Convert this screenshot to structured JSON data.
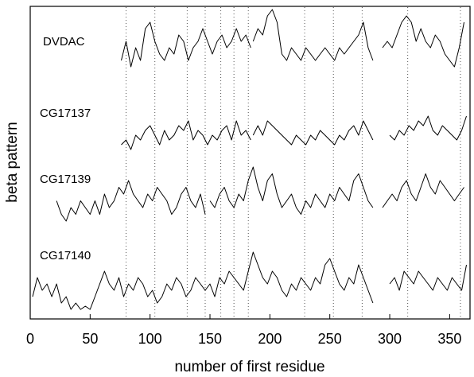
{
  "chart_data": {
    "type": "line",
    "xlabel": "number of first residue",
    "ylabel": "beta pattern",
    "xlim": [
      0,
      367
    ],
    "xticks": [
      0,
      50,
      100,
      150,
      200,
      250,
      300,
      350
    ],
    "y_tick_labels_shown": false,
    "grid": "dotted vertical reference lines",
    "reference_lines_x": [
      80,
      104,
      131,
      146,
      159,
      170,
      182,
      229,
      253,
      277,
      315,
      359
    ],
    "legend": "none; series labelled inline on the left",
    "series": [
      {
        "name": "DVDAC",
        "segments": [
          {
            "x": [
              76,
              80,
              84,
              88,
              92,
              96,
              100,
              104,
              108,
              112,
              116,
              120,
              124,
              128,
              132,
              136,
              140,
              144,
              148,
              152,
              156,
              160,
              164,
              168,
              172,
              176,
              180,
              184
            ],
            "y": [
              0.3,
              0.6,
              0.2,
              0.5,
              0.3,
              0.8,
              0.9,
              0.6,
              0.4,
              0.3,
              0.5,
              0.4,
              0.7,
              0.6,
              0.3,
              0.5,
              0.6,
              0.8,
              0.6,
              0.4,
              0.6,
              0.7,
              0.5,
              0.6,
              0.8,
              0.6,
              0.7,
              0.5
            ]
          },
          {
            "x": [
              186,
              190,
              194,
              198,
              202,
              206,
              210,
              214,
              218,
              222,
              226,
              230,
              234,
              238,
              242,
              246,
              250,
              254,
              258,
              262,
              266,
              270,
              274,
              278,
              282,
              286
            ],
            "y": [
              0.6,
              0.8,
              0.7,
              1.0,
              1.1,
              0.9,
              0.4,
              0.3,
              0.5,
              0.4,
              0.3,
              0.5,
              0.4,
              0.3,
              0.4,
              0.5,
              0.4,
              0.3,
              0.5,
              0.4,
              0.5,
              0.6,
              0.7,
              0.9,
              0.5,
              0.3
            ]
          },
          {
            "x": [
              294,
              298,
              302,
              306,
              310,
              314,
              318,
              322,
              326,
              330,
              334,
              338,
              342,
              346,
              350,
              354,
              358,
              362
            ],
            "y": [
              0.5,
              0.6,
              0.5,
              0.7,
              0.9,
              1.0,
              0.9,
              0.6,
              0.8,
              0.6,
              0.5,
              0.7,
              0.6,
              0.4,
              0.3,
              0.2,
              0.5,
              0.9
            ]
          }
        ]
      },
      {
        "name": "CG17137",
        "segments": [
          {
            "x": [
              76,
              80,
              84,
              88,
              92,
              96,
              100,
              104,
              108,
              112,
              116,
              120,
              124,
              128,
              132,
              136,
              140,
              144,
              148,
              152,
              156,
              160,
              164,
              168,
              172,
              176,
              180,
              184
            ],
            "y": [
              0.3,
              0.4,
              0.2,
              0.5,
              0.4,
              0.6,
              0.7,
              0.5,
              0.3,
              0.6,
              0.4,
              0.5,
              0.7,
              0.6,
              0.8,
              0.4,
              0.6,
              0.5,
              0.3,
              0.5,
              0.4,
              0.6,
              0.7,
              0.4,
              0.8,
              0.5,
              0.6,
              0.4
            ]
          },
          {
            "x": [
              186,
              190,
              194,
              198,
              202,
              206,
              210,
              214,
              218,
              222,
              226,
              230,
              234,
              238,
              242,
              246,
              250,
              254,
              258,
              262,
              266,
              270,
              274,
              278,
              282,
              286
            ],
            "y": [
              0.5,
              0.7,
              0.5,
              0.8,
              0.7,
              0.6,
              0.5,
              0.4,
              0.3,
              0.5,
              0.4,
              0.3,
              0.5,
              0.4,
              0.6,
              0.5,
              0.4,
              0.3,
              0.5,
              0.4,
              0.6,
              0.7,
              0.5,
              0.8,
              0.6,
              0.4
            ]
          },
          {
            "x": [
              300,
              304,
              308,
              312,
              316,
              320,
              324,
              328,
              332,
              336,
              340,
              344,
              348,
              352,
              356,
              360,
              364
            ],
            "y": [
              0.5,
              0.4,
              0.6,
              0.5,
              0.7,
              0.6,
              0.8,
              0.7,
              0.9,
              0.6,
              0.5,
              0.7,
              0.6,
              0.5,
              0.4,
              0.6,
              0.9
            ]
          }
        ]
      },
      {
        "name": "CG17139",
        "segments": [
          {
            "x": [
              22,
              26,
              30,
              34,
              38,
              42,
              46,
              50,
              54,
              58,
              62,
              66,
              70,
              74,
              78,
              82,
              86,
              90,
              94,
              98,
              102,
              106,
              110,
              114,
              118,
              122,
              126,
              130,
              134,
              138,
              142,
              146
            ],
            "y": [
              0.5,
              0.3,
              0.2,
              0.4,
              0.3,
              0.5,
              0.4,
              0.3,
              0.5,
              0.3,
              0.6,
              0.4,
              0.5,
              0.7,
              0.6,
              0.8,
              0.6,
              0.5,
              0.4,
              0.6,
              0.5,
              0.7,
              0.6,
              0.5,
              0.3,
              0.4,
              0.6,
              0.7,
              0.5,
              0.4,
              0.6,
              0.3
            ]
          },
          {
            "x": [
              150,
              154,
              158,
              162,
              166,
              170,
              174,
              178,
              182,
              186,
              190,
              194,
              198,
              202,
              206,
              210,
              214,
              218,
              222,
              226,
              230,
              234,
              238,
              242,
              246,
              250,
              254,
              258,
              262,
              266,
              270,
              274,
              278,
              282,
              286
            ],
            "y": [
              0.5,
              0.4,
              0.6,
              0.7,
              0.5,
              0.4,
              0.6,
              0.5,
              0.8,
              1.0,
              0.7,
              0.5,
              0.8,
              0.9,
              0.6,
              0.4,
              0.5,
              0.6,
              0.4,
              0.3,
              0.5,
              0.4,
              0.6,
              0.5,
              0.4,
              0.6,
              0.5,
              0.7,
              0.6,
              0.5,
              0.8,
              0.9,
              0.7,
              0.5,
              0.4
            ]
          },
          {
            "x": [
              294,
              298,
              302,
              306,
              310,
              314,
              318,
              322,
              326,
              330,
              334,
              338,
              342,
              346,
              350,
              354,
              358,
              362
            ],
            "y": [
              0.4,
              0.5,
              0.6,
              0.5,
              0.7,
              0.8,
              0.6,
              0.5,
              0.7,
              0.9,
              0.7,
              0.6,
              0.8,
              0.7,
              0.6,
              0.5,
              0.6,
              0.7
            ]
          }
        ]
      },
      {
        "name": "CG17140",
        "segments": [
          {
            "x": [
              2,
              6,
              10,
              14,
              18,
              22,
              26,
              30,
              34,
              38,
              42,
              46,
              50,
              54,
              58,
              62,
              66,
              70,
              74,
              78,
              82,
              86,
              90,
              94,
              98,
              102,
              106,
              110,
              114,
              118,
              122,
              126,
              130,
              134,
              138,
              142,
              146,
              150,
              154,
              158,
              162,
              166,
              170,
              174,
              178,
              182,
              186,
              190,
              194,
              198,
              202,
              206,
              210,
              214,
              218,
              222,
              226,
              230,
              234,
              238,
              242,
              246,
              250,
              254,
              258,
              262,
              266,
              270,
              274,
              278,
              282,
              286
            ],
            "y": [
              0.3,
              0.6,
              0.4,
              0.5,
              0.3,
              0.5,
              0.2,
              0.3,
              0.1,
              0.2,
              0.1,
              0.15,
              0.1,
              0.3,
              0.5,
              0.7,
              0.5,
              0.4,
              0.6,
              0.3,
              0.5,
              0.4,
              0.6,
              0.5,
              0.3,
              0.4,
              0.2,
              0.3,
              0.5,
              0.4,
              0.6,
              0.5,
              0.3,
              0.4,
              0.6,
              0.5,
              0.4,
              0.5,
              0.3,
              0.6,
              0.5,
              0.7,
              0.6,
              0.5,
              0.4,
              0.7,
              1.0,
              0.8,
              0.6,
              0.5,
              0.7,
              0.6,
              0.4,
              0.3,
              0.5,
              0.4,
              0.6,
              0.5,
              0.4,
              0.6,
              0.5,
              0.8,
              0.9,
              0.7,
              0.5,
              0.4,
              0.6,
              0.5,
              0.8,
              0.6,
              0.4,
              0.2
            ]
          },
          {
            "x": [
              300,
              304,
              308,
              312,
              316,
              320,
              324,
              328,
              332,
              336,
              340,
              344,
              348,
              352,
              356,
              360,
              364
            ],
            "y": [
              0.5,
              0.6,
              0.4,
              0.7,
              0.6,
              0.5,
              0.7,
              0.6,
              0.5,
              0.4,
              0.6,
              0.5,
              0.4,
              0.6,
              0.5,
              0.4,
              0.8
            ]
          }
        ]
      }
    ]
  }
}
